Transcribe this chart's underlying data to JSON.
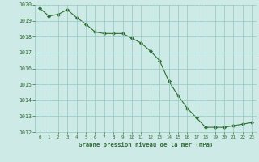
{
  "hours": [
    0,
    1,
    2,
    3,
    4,
    5,
    6,
    7,
    8,
    9,
    10,
    11,
    12,
    13,
    14,
    15,
    16,
    17,
    18,
    19,
    20,
    21,
    22,
    23
  ],
  "pressure": [
    1019.8,
    1019.3,
    1019.4,
    1019.7,
    1019.2,
    1018.8,
    1018.3,
    1018.2,
    1018.2,
    1018.2,
    1017.9,
    1017.6,
    1017.1,
    1016.5,
    1015.2,
    1014.3,
    1013.5,
    1012.9,
    1012.3,
    1012.3,
    1012.3,
    1012.4,
    1012.5,
    1012.6
  ],
  "line_color": "#2d6e2d",
  "marker_color": "#2d6e2d",
  "bg_color": "#ceeae6",
  "grid_color": "#8ec8c0",
  "text_color": "#2d6e2d",
  "xlabel": "Graphe pression niveau de la mer (hPa)",
  "ylim_min": 1012,
  "ylim_max": 1020,
  "yticks": [
    1012,
    1013,
    1014,
    1015,
    1016,
    1017,
    1018,
    1019,
    1020
  ],
  "xticks": [
    0,
    1,
    2,
    3,
    4,
    5,
    6,
    7,
    8,
    9,
    10,
    11,
    12,
    13,
    14,
    15,
    16,
    17,
    18,
    19,
    20,
    21,
    22,
    23
  ]
}
